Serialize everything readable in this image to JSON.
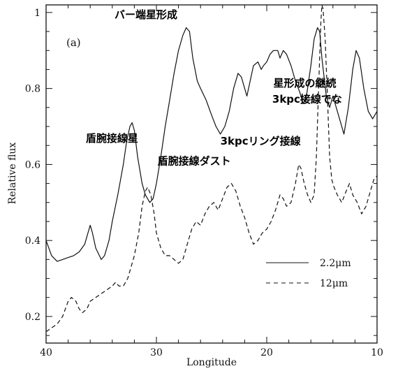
{
  "chart_data": {
    "type": "line",
    "panel_label": "(a)",
    "xlabel": "Longitude",
    "ylabel": "Relative flux",
    "xlim": [
      40,
      10
    ],
    "ylim": [
      0.13,
      1.02
    ],
    "x_ticks": [
      40,
      30,
      20,
      10
    ],
    "y_ticks": [
      0.2,
      0.4,
      0.6,
      0.8,
      1
    ],
    "grid": false,
    "legend_position": "bottom-right",
    "series": [
      {
        "name": "2.2μm",
        "style": "solid",
        "points": [
          [
            40,
            0.4
          ],
          [
            39.5,
            0.36
          ],
          [
            39,
            0.345
          ],
          [
            38.5,
            0.35
          ],
          [
            38,
            0.355
          ],
          [
            37.5,
            0.36
          ],
          [
            37,
            0.37
          ],
          [
            36.5,
            0.39
          ],
          [
            36.2,
            0.42
          ],
          [
            36,
            0.44
          ],
          [
            35.8,
            0.42
          ],
          [
            35.5,
            0.38
          ],
          [
            35,
            0.35
          ],
          [
            34.7,
            0.36
          ],
          [
            34.3,
            0.4
          ],
          [
            34,
            0.45
          ],
          [
            33.5,
            0.52
          ],
          [
            33,
            0.6
          ],
          [
            32.7,
            0.66
          ],
          [
            32.4,
            0.7
          ],
          [
            32.2,
            0.71
          ],
          [
            32,
            0.69
          ],
          [
            31.7,
            0.62
          ],
          [
            31.3,
            0.55
          ],
          [
            31,
            0.52
          ],
          [
            30.6,
            0.5
          ],
          [
            30.3,
            0.51
          ],
          [
            30,
            0.55
          ],
          [
            29.6,
            0.62
          ],
          [
            29.2,
            0.7
          ],
          [
            28.8,
            0.77
          ],
          [
            28.4,
            0.84
          ],
          [
            28,
            0.9
          ],
          [
            27.6,
            0.94
          ],
          [
            27.3,
            0.96
          ],
          [
            27,
            0.95
          ],
          [
            26.7,
            0.88
          ],
          [
            26.3,
            0.82
          ],
          [
            26,
            0.8
          ],
          [
            25.5,
            0.77
          ],
          [
            25,
            0.73
          ],
          [
            24.6,
            0.7
          ],
          [
            24.2,
            0.68
          ],
          [
            23.8,
            0.7
          ],
          [
            23.4,
            0.74
          ],
          [
            23,
            0.8
          ],
          [
            22.6,
            0.84
          ],
          [
            22.3,
            0.83
          ],
          [
            22,
            0.8
          ],
          [
            21.8,
            0.78
          ],
          [
            21.5,
            0.82
          ],
          [
            21.2,
            0.86
          ],
          [
            20.8,
            0.87
          ],
          [
            20.5,
            0.85
          ],
          [
            20.3,
            0.86
          ],
          [
            20,
            0.87
          ],
          [
            19.7,
            0.89
          ],
          [
            19.4,
            0.9
          ],
          [
            19,
            0.9
          ],
          [
            18.8,
            0.88
          ],
          [
            18.5,
            0.9
          ],
          [
            18.2,
            0.89
          ],
          [
            17.8,
            0.86
          ],
          [
            17.4,
            0.82
          ],
          [
            17,
            0.79
          ],
          [
            16.7,
            0.76
          ],
          [
            16.4,
            0.78
          ],
          [
            16,
            0.86
          ],
          [
            15.7,
            0.93
          ],
          [
            15.4,
            0.96
          ],
          [
            15.2,
            0.95
          ],
          [
            15,
            0.88
          ],
          [
            14.6,
            0.78
          ],
          [
            14.3,
            0.75
          ],
          [
            14,
            0.78
          ],
          [
            13.5,
            0.73
          ],
          [
            13,
            0.68
          ],
          [
            12.6,
            0.75
          ],
          [
            12.2,
            0.85
          ],
          [
            11.9,
            0.9
          ],
          [
            11.6,
            0.88
          ],
          [
            11.2,
            0.8
          ],
          [
            10.8,
            0.74
          ],
          [
            10.4,
            0.72
          ],
          [
            10,
            0.74
          ]
        ]
      },
      {
        "name": "12μm",
        "style": "dashed",
        "points": [
          [
            40,
            0.16
          ],
          [
            39.5,
            0.17
          ],
          [
            39,
            0.18
          ],
          [
            38.5,
            0.2
          ],
          [
            38,
            0.24
          ],
          [
            37.7,
            0.25
          ],
          [
            37.3,
            0.24
          ],
          [
            37,
            0.22
          ],
          [
            36.7,
            0.21
          ],
          [
            36.3,
            0.22
          ],
          [
            36,
            0.24
          ],
          [
            35.5,
            0.25
          ],
          [
            35,
            0.26
          ],
          [
            34.5,
            0.27
          ],
          [
            34,
            0.28
          ],
          [
            33.7,
            0.29
          ],
          [
            33.4,
            0.28
          ],
          [
            33,
            0.28
          ],
          [
            32.6,
            0.3
          ],
          [
            32.3,
            0.33
          ],
          [
            32,
            0.36
          ],
          [
            31.6,
            0.42
          ],
          [
            31.3,
            0.49
          ],
          [
            31,
            0.53
          ],
          [
            30.8,
            0.54
          ],
          [
            30.5,
            0.52
          ],
          [
            30.2,
            0.47
          ],
          [
            30,
            0.42
          ],
          [
            29.6,
            0.38
          ],
          [
            29.2,
            0.36
          ],
          [
            28.8,
            0.36
          ],
          [
            28.4,
            0.35
          ],
          [
            28,
            0.34
          ],
          [
            27.6,
            0.35
          ],
          [
            27.2,
            0.39
          ],
          [
            26.8,
            0.43
          ],
          [
            26.4,
            0.45
          ],
          [
            26,
            0.44
          ],
          [
            25.6,
            0.47
          ],
          [
            25.2,
            0.49
          ],
          [
            24.8,
            0.5
          ],
          [
            24.4,
            0.48
          ],
          [
            24,
            0.51
          ],
          [
            23.6,
            0.54
          ],
          [
            23.2,
            0.55
          ],
          [
            22.8,
            0.53
          ],
          [
            22.4,
            0.49
          ],
          [
            22,
            0.46
          ],
          [
            21.6,
            0.42
          ],
          [
            21.2,
            0.39
          ],
          [
            20.8,
            0.4
          ],
          [
            20.4,
            0.42
          ],
          [
            20,
            0.43
          ],
          [
            19.6,
            0.45
          ],
          [
            19.2,
            0.48
          ],
          [
            18.8,
            0.52
          ],
          [
            18.5,
            0.51
          ],
          [
            18.2,
            0.49
          ],
          [
            17.8,
            0.5
          ],
          [
            17.4,
            0.55
          ],
          [
            17.1,
            0.6
          ],
          [
            16.9,
            0.59
          ],
          [
            16.6,
            0.55
          ],
          [
            16.3,
            0.52
          ],
          [
            16,
            0.5
          ],
          [
            15.7,
            0.52
          ],
          [
            15.5,
            0.62
          ],
          [
            15.3,
            0.8
          ],
          [
            15.1,
            0.97
          ],
          [
            15,
            1.02
          ],
          [
            14.9,
            1.01
          ],
          [
            14.7,
            0.93
          ],
          [
            14.5,
            0.78
          ],
          [
            14.3,
            0.62
          ],
          [
            14.1,
            0.56
          ],
          [
            13.9,
            0.54
          ],
          [
            13.6,
            0.52
          ],
          [
            13.2,
            0.5
          ],
          [
            12.8,
            0.53
          ],
          [
            12.5,
            0.55
          ],
          [
            12.2,
            0.52
          ],
          [
            11.8,
            0.5
          ],
          [
            11.4,
            0.47
          ],
          [
            11,
            0.49
          ],
          [
            10.6,
            0.53
          ],
          [
            10.3,
            0.56
          ],
          [
            10,
            0.57
          ]
        ]
      }
    ],
    "annotations": [
      {
        "text": "バー端星形成",
        "x": 33.8,
        "y": 0.985
      },
      {
        "text": "盾腕接線星",
        "x": 36.4,
        "y": 0.66
      },
      {
        "text": "盾腕接線ダスト",
        "x": 29.9,
        "y": 0.6
      },
      {
        "text": "3kpcリング接線",
        "x": 24.2,
        "y": 0.652
      },
      {
        "text": "星形成の継続",
        "x": 19.4,
        "y": 0.805
      },
      {
        "text": "3kpc接線でな",
        "x": 19.5,
        "y": 0.763
      }
    ]
  }
}
